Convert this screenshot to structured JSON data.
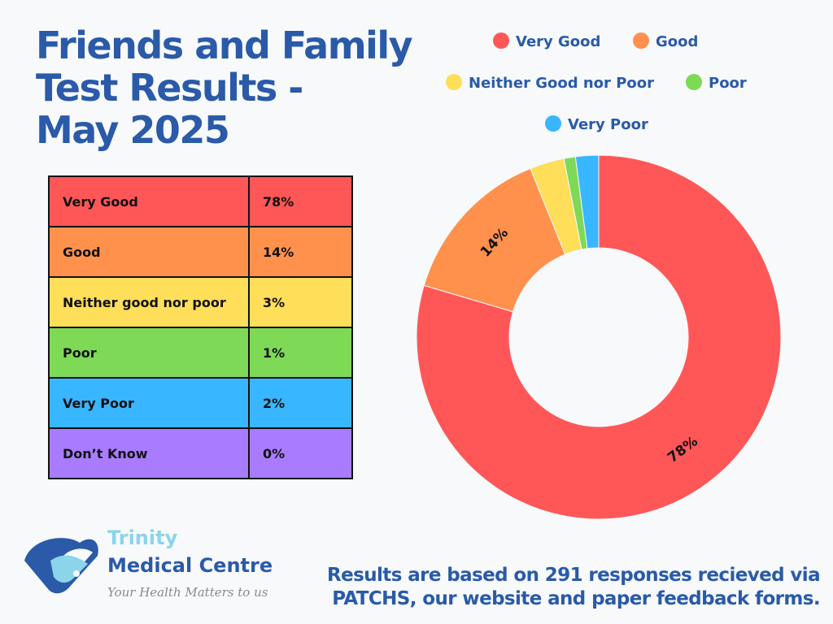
{
  "title": {
    "line1": "Friends and Family",
    "line2": "Test Results -",
    "line3": "May 2025"
  },
  "table": {
    "rows": [
      {
        "label": "Very Good",
        "value": "78%",
        "color": "#ff5757"
      },
      {
        "label": "Good",
        "value": "14%",
        "color": "#ff914d"
      },
      {
        "label": "Neither good nor poor",
        "value": "3%",
        "color": "#ffde59"
      },
      {
        "label": "Poor",
        "value": "1%",
        "color": "#7ed957"
      },
      {
        "label": "Very Poor",
        "value": "2%",
        "color": "#38b6ff"
      },
      {
        "label": "Don’t Know",
        "value": "0%",
        "color": "#a97cff"
      }
    ]
  },
  "chart_data": {
    "type": "pie",
    "style": "donut",
    "categories": [
      "Very Good",
      "Good",
      "Neither Good nor Poor",
      "Poor",
      "Very Poor"
    ],
    "values": [
      78,
      14,
      3,
      1,
      2
    ],
    "colors": [
      "#ff5757",
      "#ff914d",
      "#ffde59",
      "#7ed957",
      "#38b6ff"
    ],
    "data_labels": [
      "78%",
      "14%",
      "",
      "",
      ""
    ],
    "legend_position": "top",
    "title": "",
    "xlabel": "",
    "ylabel": ""
  },
  "logo": {
    "name_line1": "Trinity",
    "name_line2": "Medical Centre",
    "tagline": "Your Health Matters to us",
    "icon": "handshake-icon"
  },
  "footer": {
    "text": "Results are based on 291 responses recieved via PATCHS, our website and paper feedback forms."
  }
}
